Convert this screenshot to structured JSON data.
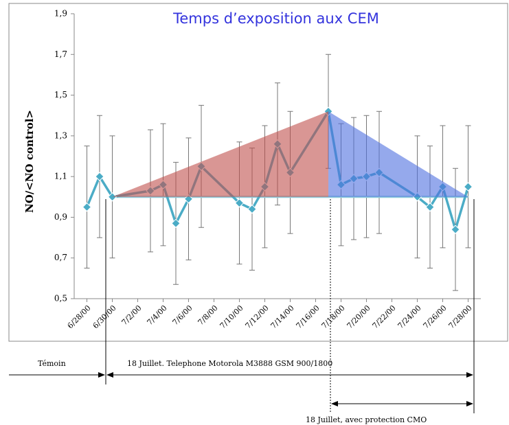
{
  "chart_data": {
    "type": "line",
    "title": "Temps d’exposition aux CEM",
    "ylabel": "NO/<NO control>",
    "x": [
      "6/28/00",
      "6/29/00",
      "6/30/00",
      "7/3/00",
      "7/4/00",
      "7/5/00",
      "7/6/00",
      "7/7/00",
      "7/10/00",
      "7/11/00",
      "7/12/00",
      "7/13/00",
      "7/14/00",
      "7/17/00",
      "7/18/00",
      "7/19/00",
      "7/20/00",
      "7/21/00",
      "7/24/00",
      "7/25/00",
      "7/26/00",
      "7/27/00",
      "7/28/00"
    ],
    "series": [
      {
        "color": "#4bacc6",
        "values": [
          0.95,
          1.1,
          1.0,
          1.03,
          1.06,
          0.87,
          0.99,
          1.15,
          0.97,
          0.94,
          1.05,
          1.26,
          1.12,
          1.42,
          1.06,
          1.09,
          1.1,
          1.12,
          1.0,
          0.95,
          1.05,
          0.84,
          1.05
        ],
        "errors": [
          0.3,
          0.3,
          0.3,
          0.3,
          0.3,
          0.3,
          0.3,
          0.3,
          0.3,
          0.3,
          0.3,
          0.3,
          0.3,
          0.28,
          0.3,
          0.3,
          0.3,
          0.3,
          0.3,
          0.3,
          0.3,
          0.3,
          0.3
        ]
      }
    ],
    "xlim": [
      "6/27/00",
      "7/29/00"
    ],
    "xticks": [
      "6/28/00",
      "6/30/00",
      "7/2/00",
      "7/4/00",
      "7/6/00",
      "7/8/00",
      "7/10/00",
      "7/12/00",
      "7/14/00",
      "7/16/00",
      "7/18/00",
      "7/20/00",
      "7/22/00",
      "7/24/00",
      "7/26/00",
      "7/28/00"
    ],
    "ylim": [
      0.5,
      1.9
    ],
    "yticks": [
      {
        "value": 0.5,
        "label": "0,5"
      },
      {
        "value": 0.7,
        "label": "0,7"
      },
      {
        "value": 0.9,
        "label": "0,9"
      },
      {
        "value": 1.1,
        "label": "1,1"
      },
      {
        "value": 1.3,
        "label": "1,3"
      },
      {
        "value": 1.5,
        "label": "1,5"
      },
      {
        "value": 1.7,
        "label": "1,7"
      },
      {
        "value": 1.9,
        "label": "1,9"
      }
    ],
    "region_colors": [
      "#c0504d",
      "#4f6fe0"
    ],
    "annotations": [
      "Témoin",
      "18 Juillet. Telephone Motorola M3888 GSM 900/1800",
      "18 Juillet, avec protection CMO"
    ]
  }
}
